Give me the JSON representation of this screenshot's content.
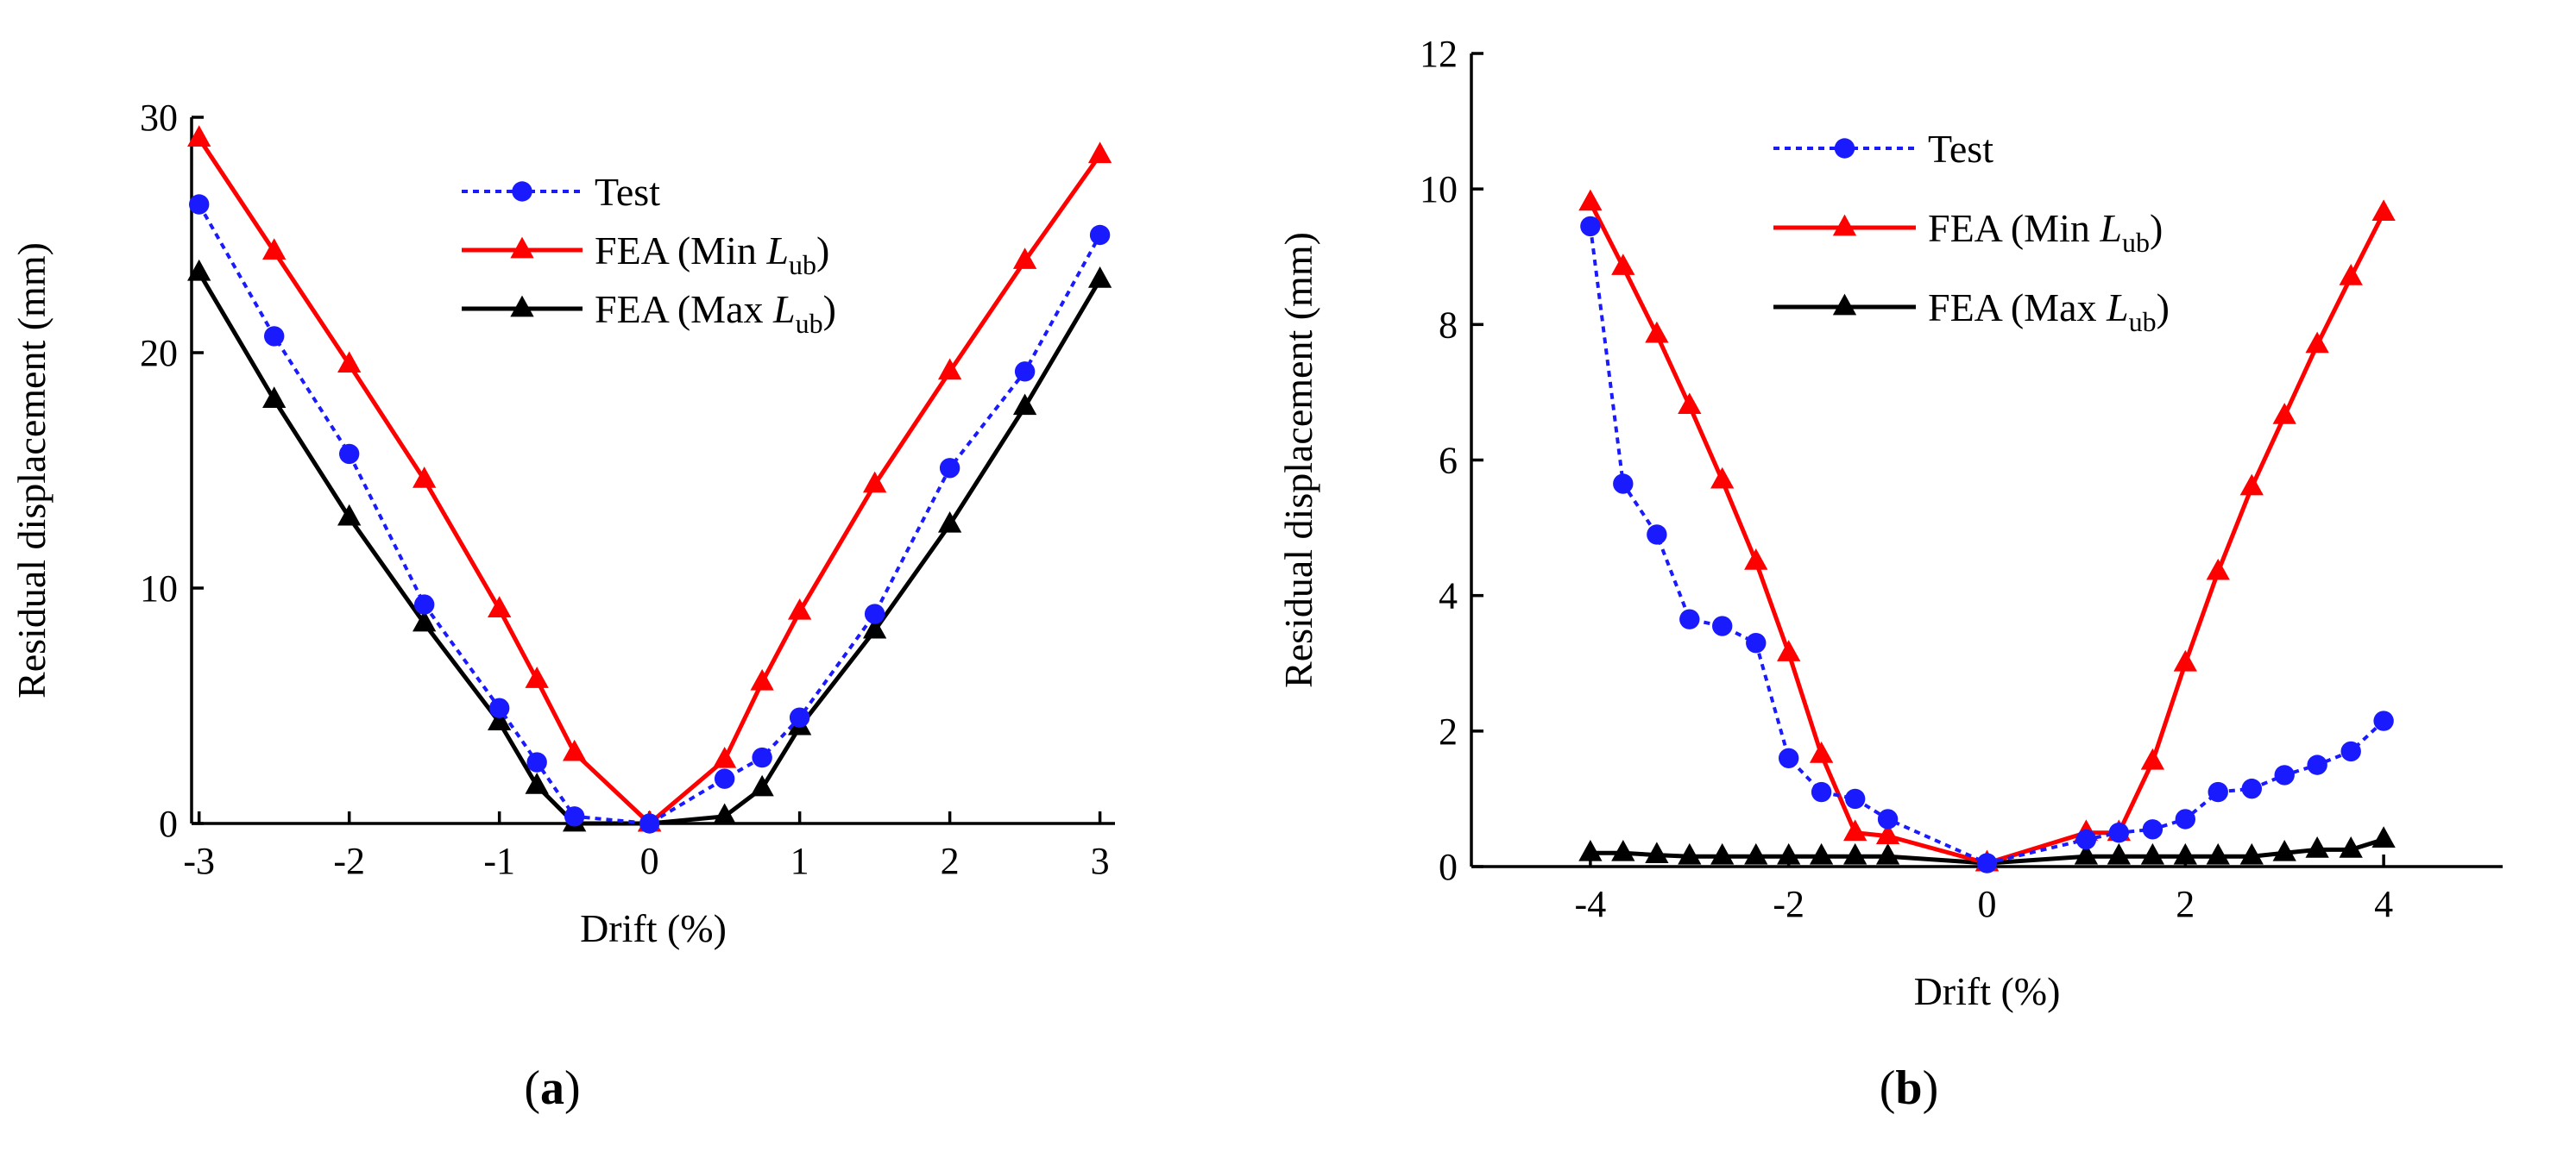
{
  "chart_data": [
    {
      "type": "line",
      "panel_label": "(a)",
      "xlabel": "Drift (%)",
      "ylabel": "Residual displacement (mm)",
      "xlim": [
        -3.05,
        3.1
      ],
      "ylim": [
        0,
        30
      ],
      "x_ticks": [
        -3,
        -2,
        -1,
        0,
        1,
        2,
        3
      ],
      "y_ticks": [
        0,
        10,
        20,
        30
      ],
      "legend_position": "top-center",
      "series": [
        {
          "name": "Test",
          "name_parts": [
            "Test",
            "",
            "",
            ""
          ],
          "color": "#1a1aff",
          "line_style": "dotted",
          "marker": "circle",
          "x": [
            -3,
            -2.5,
            -2,
            -1.5,
            -1,
            -0.75,
            -0.5,
            0,
            0.5,
            0.75,
            1,
            1.5,
            2,
            2.5,
            3
          ],
          "values": [
            26.3,
            20.7,
            15.7,
            9.3,
            4.9,
            2.6,
            0.3,
            0,
            1.9,
            2.8,
            4.5,
            8.9,
            15.1,
            19.2,
            25.0
          ]
        },
        {
          "name": "FEA (Min Lub)",
          "name_parts": [
            "FEA (Min ",
            "L",
            "ub",
            ")"
          ],
          "color": "#ff0000",
          "line_style": "solid",
          "marker": "triangle",
          "x": [
            -3,
            -2.5,
            -2,
            -1.5,
            -1,
            -0.75,
            -0.5,
            0,
            0.5,
            0.75,
            1,
            1.5,
            2,
            2.5,
            3
          ],
          "values": [
            29.1,
            24.3,
            19.5,
            14.6,
            9.1,
            6.1,
            3.0,
            0,
            2.7,
            6.0,
            9.0,
            14.4,
            19.2,
            23.9,
            28.4
          ]
        },
        {
          "name": "FEA (Max Lub)",
          "name_parts": [
            "FEA (Max ",
            "L",
            "ub",
            ")"
          ],
          "color": "#000000",
          "line_style": "solid",
          "marker": "triangle",
          "x": [
            -3,
            -2.5,
            -2,
            -1.5,
            -1,
            -0.75,
            -0.5,
            0,
            0.5,
            0.75,
            1,
            1.5,
            2,
            2.5,
            3
          ],
          "values": [
            23.4,
            18.0,
            13.0,
            8.5,
            4.3,
            1.6,
            0,
            0,
            0.3,
            1.5,
            4.1,
            8.2,
            12.7,
            17.7,
            23.1
          ]
        }
      ]
    },
    {
      "type": "line",
      "panel_label": "(b)",
      "xlabel": "Drift (%)",
      "ylabel": "Residual displacement (mm)",
      "xlim": [
        -5.2,
        5.2
      ],
      "ylim": [
        0,
        12
      ],
      "x_ticks": [
        -4,
        -2,
        0,
        2,
        4
      ],
      "y_ticks": [
        0,
        2,
        4,
        6,
        8,
        10,
        12
      ],
      "legend_position": "top-left",
      "series": [
        {
          "name": "Test",
          "name_parts": [
            "Test",
            "",
            "",
            ""
          ],
          "color": "#1a1aff",
          "line_style": "dotted",
          "marker": "circle",
          "x": [
            -4,
            -3.67,
            -3.33,
            -3,
            -2.67,
            -2.33,
            -2,
            -1.67,
            -1.33,
            -1,
            0,
            1,
            1.33,
            1.67,
            2,
            2.33,
            2.67,
            3,
            3.33,
            3.67,
            4
          ],
          "values": [
            9.45,
            5.65,
            4.9,
            3.65,
            3.55,
            3.3,
            1.6,
            1.1,
            1.0,
            0.7,
            0.05,
            0.4,
            0.5,
            0.55,
            0.7,
            1.1,
            1.15,
            1.35,
            1.5,
            1.7,
            2.15
          ]
        },
        {
          "name": "FEA (Min Lub)",
          "name_parts": [
            "FEA (Min ",
            "L",
            "ub",
            ")"
          ],
          "color": "#ff0000",
          "line_style": "solid",
          "marker": "triangle",
          "x": [
            -4,
            -3.67,
            -3.33,
            -3,
            -2.67,
            -2.33,
            -2,
            -1.67,
            -1.33,
            -1,
            0,
            1,
            1.33,
            1.67,
            2,
            2.33,
            2.67,
            3,
            3.33,
            3.67,
            4
          ],
          "values": [
            9.8,
            8.85,
            7.85,
            6.8,
            5.7,
            4.5,
            3.15,
            1.65,
            0.5,
            0.45,
            0.05,
            0.5,
            0.5,
            1.55,
            3.0,
            4.35,
            5.6,
            6.65,
            7.7,
            8.7,
            9.65
          ]
        },
        {
          "name": "FEA (Max Lub)",
          "name_parts": [
            "FEA (Max ",
            "L",
            "ub",
            ")"
          ],
          "color": "#000000",
          "line_style": "solid",
          "marker": "triangle",
          "x": [
            -4,
            -3.67,
            -3.33,
            -3,
            -2.67,
            -2.33,
            -2,
            -1.67,
            -1.33,
            -1,
            0,
            1,
            1.33,
            1.67,
            2,
            2.33,
            2.67,
            3,
            3.33,
            3.67,
            4
          ],
          "values": [
            0.2,
            0.2,
            0.17,
            0.15,
            0.15,
            0.15,
            0.15,
            0.15,
            0.15,
            0.15,
            0.05,
            0.15,
            0.15,
            0.15,
            0.15,
            0.15,
            0.15,
            0.2,
            0.25,
            0.25,
            0.4
          ]
        }
      ]
    }
  ]
}
